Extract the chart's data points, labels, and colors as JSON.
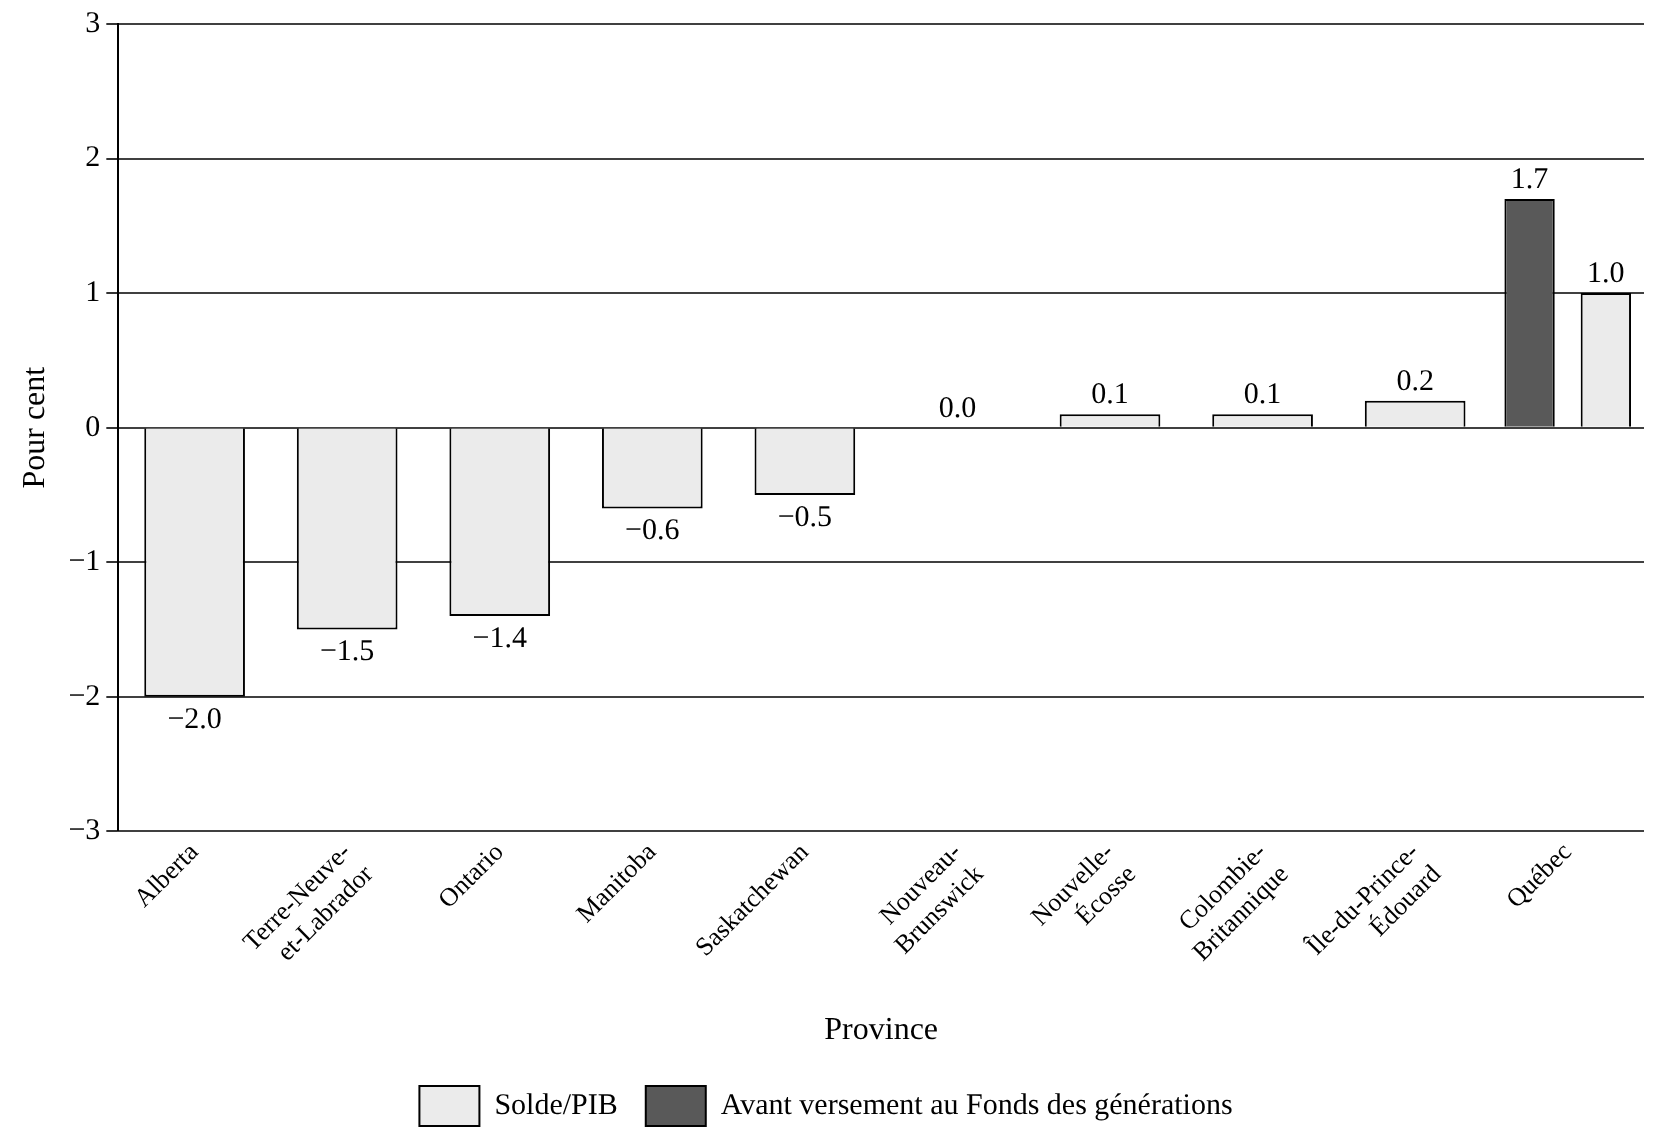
{
  "chart_data": {
    "type": "bar",
    "xlabel": "Province",
    "ylabel": "Pour cent",
    "categories": [
      "Alberta",
      "Terre-Neuve-et-Labrador",
      "Ontario",
      "Manitoba",
      "Saskatchewan",
      "Nouveau-Brunswick",
      "Nouvelle-Écosse",
      "Colombie-Britannique",
      "Île-du-Prince-Édouard",
      "Québec"
    ],
    "series": [
      {
        "name": "Solde/PIB",
        "color": "#ebebeb",
        "values": [
          -2.0,
          -1.5,
          -1.4,
          -0.6,
          -0.5,
          0.0,
          0.1,
          0.1,
          0.2,
          1.0
        ],
        "value_labels": [
          "−2.0",
          "−1.5",
          "−1.4",
          "−0.6",
          "−0.5",
          "0.0",
          "0.1",
          "0.1",
          "0.2",
          "1.0"
        ]
      },
      {
        "name": "Avant versement au Fonds des générations",
        "color": "#595959",
        "values": [
          null,
          null,
          null,
          null,
          null,
          null,
          null,
          null,
          null,
          1.7
        ],
        "value_labels": [
          null,
          null,
          null,
          null,
          null,
          null,
          null,
          null,
          null,
          "1.7"
        ]
      }
    ],
    "ylim": [
      -3,
      3
    ],
    "yticks": [
      {
        "value": -3,
        "label": "−3"
      },
      {
        "value": -2,
        "label": "−2"
      },
      {
        "value": -1,
        "label": "−1"
      },
      0,
      1,
      2,
      3
    ],
    "grid": "y",
    "legend": "bottom"
  }
}
